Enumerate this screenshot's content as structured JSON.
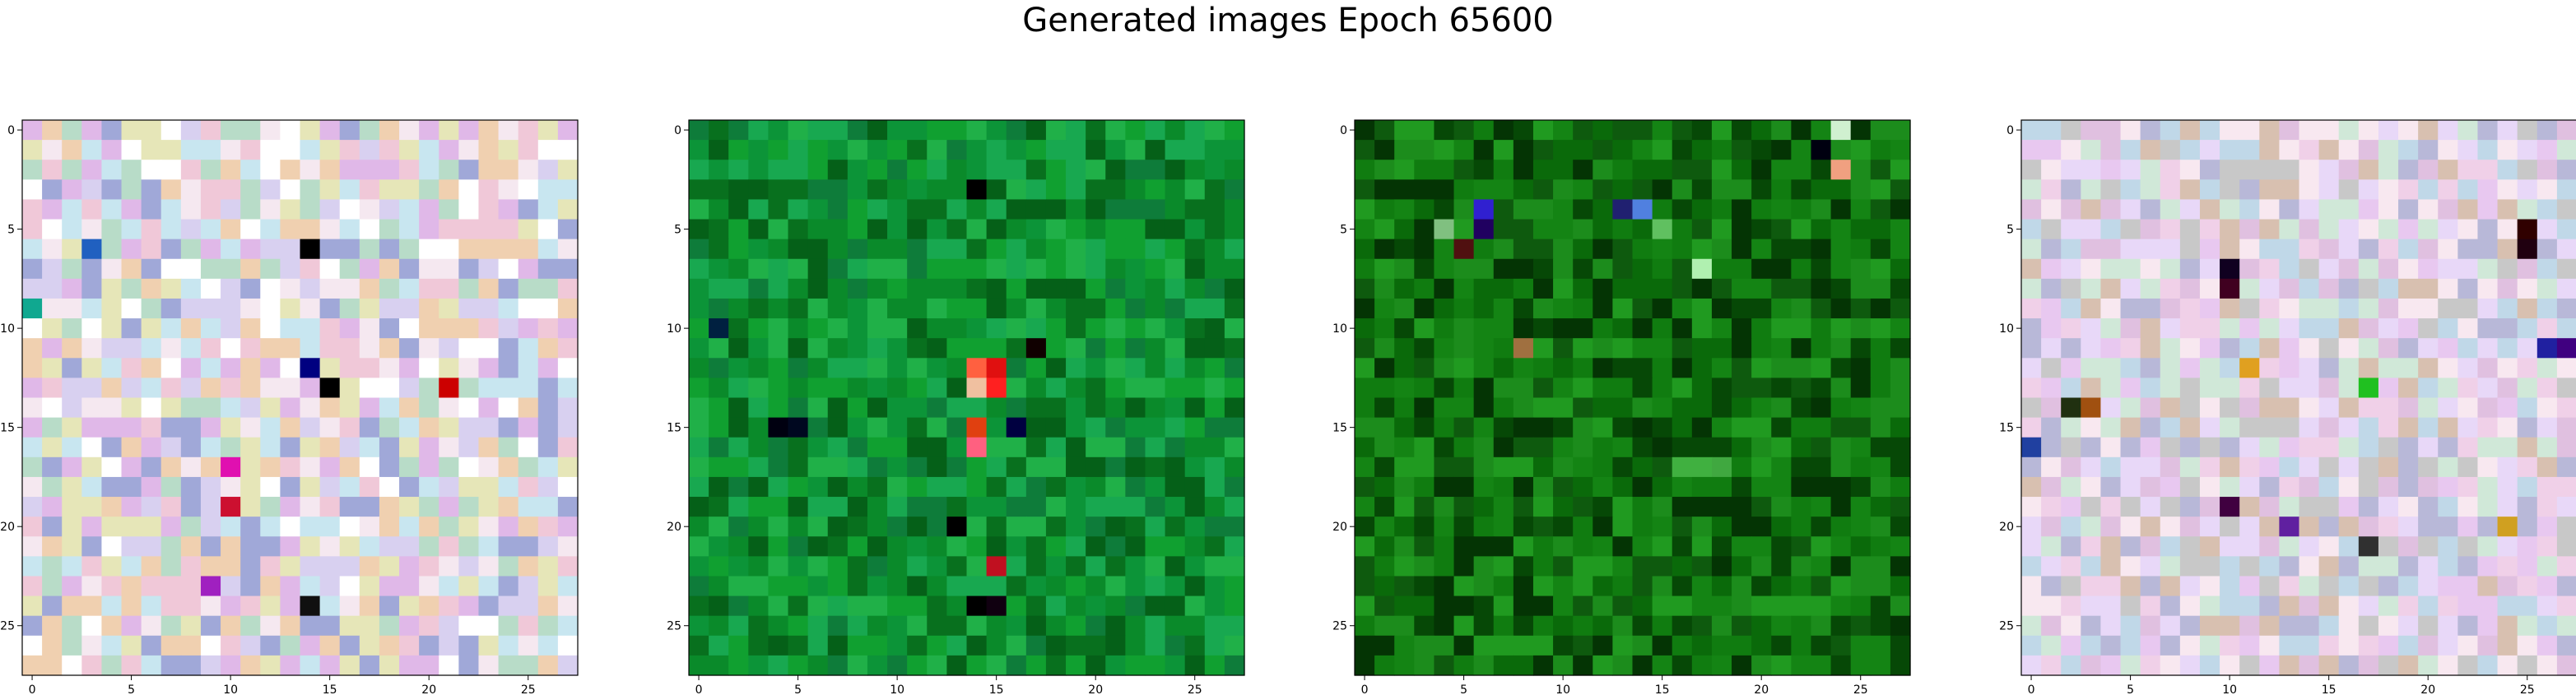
{
  "figure": {
    "title": "Generated images Epoch 65600"
  },
  "chart_data": [
    {
      "type": "heatmap",
      "title": "",
      "xlabel": "",
      "ylabel": "",
      "grid": false,
      "size": 28,
      "xlim": [
        -0.5,
        27.5
      ],
      "ylim": [
        27.5,
        -0.5
      ],
      "xticks": [
        0,
        5,
        10,
        15,
        20,
        25
      ],
      "yticks": [
        0,
        5,
        10,
        15,
        20,
        25
      ],
      "palette": "pastel multicolor noise",
      "colors": [
        "#f0c8d8",
        "#c8e6f0",
        "#d8d0f0",
        "#e6e6b8",
        "#f5e8f0",
        "#b8dcc8",
        "#e0b8e8",
        "#ffffff",
        "#a0a8d8",
        "#f0d0b0"
      ],
      "features": [
        {
          "row": 13,
          "col": 15,
          "color": "#000000"
        },
        {
          "row": 12,
          "col": 14,
          "color": "#000080"
        },
        {
          "row": 6,
          "col": 14,
          "color": "#000000"
        },
        {
          "row": 13,
          "col": 21,
          "color": "#cc0000"
        },
        {
          "row": 19,
          "col": 10,
          "color": "#cc1030"
        },
        {
          "row": 17,
          "col": 10,
          "color": "#e010b0"
        },
        {
          "row": 23,
          "col": 9,
          "color": "#a020c0"
        },
        {
          "row": 6,
          "col": 3,
          "color": "#2060c0"
        },
        {
          "row": 9,
          "col": 0,
          "color": "#10a890"
        },
        {
          "row": 24,
          "col": 14,
          "color": "#101010"
        }
      ]
    },
    {
      "type": "heatmap",
      "title": "",
      "xlabel": "",
      "ylabel": "",
      "grid": false,
      "size": 28,
      "xlim": [
        -0.5,
        27.5
      ],
      "ylim": [
        27.5,
        -0.5
      ],
      "xticks": [
        0,
        5,
        10,
        15,
        20,
        25
      ],
      "yticks": [
        0,
        5,
        10,
        15,
        20,
        25
      ],
      "palette": "bright green noise",
      "colors": [
        "#0a8a2a",
        "#10a030",
        "#08701e",
        "#20b048",
        "#0c9438",
        "#0e7c3a",
        "#18a850",
        "#056018"
      ],
      "features": [
        {
          "row": 12,
          "col": 15,
          "color": "#e01010"
        },
        {
          "row": 13,
          "col": 15,
          "color": "#ff2020"
        },
        {
          "row": 12,
          "col": 14,
          "color": "#ff6040"
        },
        {
          "row": 13,
          "col": 14,
          "color": "#f0c0a0"
        },
        {
          "row": 15,
          "col": 14,
          "color": "#e04010"
        },
        {
          "row": 16,
          "col": 14,
          "color": "#ff6080"
        },
        {
          "row": 22,
          "col": 15,
          "color": "#c01020"
        },
        {
          "row": 24,
          "col": 14,
          "color": "#000000"
        },
        {
          "row": 24,
          "col": 15,
          "color": "#100010"
        },
        {
          "row": 3,
          "col": 14,
          "color": "#000000"
        },
        {
          "row": 15,
          "col": 4,
          "color": "#000010"
        },
        {
          "row": 15,
          "col": 5,
          "color": "#000820"
        },
        {
          "row": 10,
          "col": 1,
          "color": "#002040"
        },
        {
          "row": 11,
          "col": 17,
          "color": "#100000"
        },
        {
          "row": 20,
          "col": 13,
          "color": "#000000"
        },
        {
          "row": 15,
          "col": 16,
          "color": "#000040"
        }
      ]
    },
    {
      "type": "heatmap",
      "title": "",
      "xlabel": "",
      "ylabel": "",
      "grid": false,
      "size": 28,
      "xlim": [
        -0.5,
        27.5
      ],
      "ylim": [
        27.5,
        -0.5
      ],
      "xticks": [
        0,
        5,
        10,
        15,
        20,
        25
      ],
      "yticks": [
        0,
        5,
        10,
        15,
        20,
        25
      ],
      "palette": "dark green noise",
      "colors": [
        "#0a6a0a",
        "#107c10",
        "#064806",
        "#1c8c1c",
        "#0e5a0e",
        "#148414",
        "#043404",
        "#209a20"
      ],
      "features": [
        {
          "row": 4,
          "col": 6,
          "color": "#3020d0"
        },
        {
          "row": 5,
          "col": 6,
          "color": "#200060"
        },
        {
          "row": 6,
          "col": 5,
          "color": "#501010"
        },
        {
          "row": 4,
          "col": 14,
          "color": "#5080e0"
        },
        {
          "row": 4,
          "col": 13,
          "color": "#202070"
        },
        {
          "row": 7,
          "col": 17,
          "color": "#b0f0b0"
        },
        {
          "row": 11,
          "col": 8,
          "color": "#a07040"
        },
        {
          "row": 0,
          "col": 24,
          "color": "#d0f0d0"
        },
        {
          "row": 1,
          "col": 23,
          "color": "#000010"
        },
        {
          "row": 2,
          "col": 24,
          "color": "#f0a080"
        },
        {
          "row": 5,
          "col": 4,
          "color": "#80c080"
        },
        {
          "row": 5,
          "col": 15,
          "color": "#60c060"
        },
        {
          "row": 17,
          "col": 16,
          "color": "#40b040"
        },
        {
          "row": 17,
          "col": 17,
          "color": "#40b040"
        },
        {
          "row": 17,
          "col": 18,
          "color": "#40a840"
        }
      ]
    },
    {
      "type": "heatmap",
      "title": "",
      "xlabel": "",
      "ylabel": "",
      "grid": false,
      "size": 28,
      "xlim": [
        -0.5,
        27.5
      ],
      "ylim": [
        27.5,
        -0.5
      ],
      "xticks": [
        0,
        5,
        10,
        15,
        20,
        25
      ],
      "yticks": [
        0,
        5,
        10,
        15,
        20,
        25
      ],
      "palette": "pastel multicolor noise",
      "colors": [
        "#e0c0e0",
        "#c8c8c8",
        "#f0d0e8",
        "#d0e8d8",
        "#e8d8f8",
        "#b8b8d8",
        "#f8e8f0",
        "#d8c0b0",
        "#c0d8e8",
        "#e8c8f0"
      ],
      "features": [
        {
          "row": 5,
          "col": 25,
          "color": "#300000"
        },
        {
          "row": 6,
          "col": 25,
          "color": "#200010"
        },
        {
          "row": 7,
          "col": 10,
          "color": "#100020"
        },
        {
          "row": 8,
          "col": 10,
          "color": "#400020"
        },
        {
          "row": 11,
          "col": 26,
          "color": "#2020a0"
        },
        {
          "row": 11,
          "col": 27,
          "color": "#400080"
        },
        {
          "row": 13,
          "col": 17,
          "color": "#20c020"
        },
        {
          "row": 14,
          "col": 2,
          "color": "#203010"
        },
        {
          "row": 14,
          "col": 3,
          "color": "#a05010"
        },
        {
          "row": 16,
          "col": 0,
          "color": "#2040a0"
        },
        {
          "row": 12,
          "col": 11,
          "color": "#e0a020"
        },
        {
          "row": 19,
          "col": 10,
          "color": "#400040"
        },
        {
          "row": 20,
          "col": 13,
          "color": "#6020a0"
        },
        {
          "row": 21,
          "col": 17,
          "color": "#303030"
        },
        {
          "row": 20,
          "col": 24,
          "color": "#d0a020"
        }
      ]
    }
  ]
}
